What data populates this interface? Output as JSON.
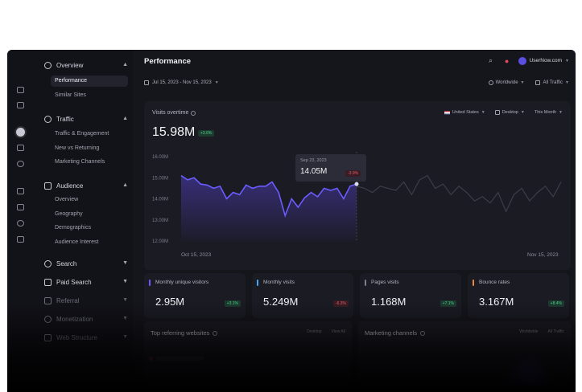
{
  "sidebar": {
    "sections": [
      {
        "label": "Overview",
        "icon": "clock-icon",
        "expanded": true,
        "items": [
          {
            "label": "Performance",
            "active": true
          },
          {
            "label": "Similar Sites",
            "active": false
          }
        ]
      },
      {
        "label": "Traffic",
        "icon": "globe-icon",
        "expanded": true,
        "items": [
          {
            "label": "Traffic & Engagement"
          },
          {
            "label": "New vs Returning"
          },
          {
            "label": "Marketing Channels"
          }
        ]
      },
      {
        "label": "Audience",
        "icon": "user-icon",
        "expanded": true,
        "items": [
          {
            "label": "Overview"
          },
          {
            "label": "Geography"
          },
          {
            "label": "Demographics"
          },
          {
            "label": "Audience Interest"
          }
        ]
      },
      {
        "label": "Search",
        "icon": "search-icon",
        "expanded": false
      },
      {
        "label": "Paid Search",
        "icon": "dollar-icon",
        "expanded": false
      },
      {
        "label": "Referral",
        "icon": "referral-icon",
        "expanded": false
      },
      {
        "label": "Monetization",
        "icon": "coin-icon",
        "expanded": false
      },
      {
        "label": "Web Structure",
        "icon": "sitemap-icon",
        "expanded": false
      }
    ]
  },
  "header": {
    "title": "Performance",
    "account": "UserNow.com"
  },
  "filters": {
    "date_range": "Jul 15, 2023 - Nov 15, 2023",
    "region": "Worldwide",
    "traffic": "All Traffic"
  },
  "visits_card": {
    "title": "Visits overtime",
    "value": "15.98M",
    "change": "+3.6%",
    "country": "United States",
    "device": "Desktop",
    "period": "This Month",
    "tooltip_date": "Sep 23, 2023",
    "tooltip_value": "14.05M",
    "tooltip_change": "-3.9%",
    "x_start": "Oct 15, 2023",
    "x_end": "Nov 15, 2023"
  },
  "chart_data": {
    "type": "line",
    "title": "Visits overtime",
    "ylim": [
      12.0,
      16.0
    ],
    "y_ticks": [
      "16.00M",
      "15.00M",
      "14.00M",
      "13.00M",
      "12.00M"
    ],
    "x_labels": [
      "Oct 15, 2023",
      "Nov 15, 2023"
    ],
    "series": [
      {
        "values": [
          15.1,
          14.9,
          15.0,
          14.7,
          14.65,
          14.5,
          14.6,
          14.0,
          14.3,
          14.2,
          14.65,
          14.5,
          14.6,
          14.6,
          14.8,
          14.3,
          13.2,
          14.0,
          13.6,
          14.05,
          14.3,
          14.1,
          14.5,
          14.4,
          14.5,
          14.0,
          14.6,
          14.7
        ]
      },
      {
        "values": [
          14.6,
          14.5,
          14.3,
          14.6,
          14.5,
          14.4,
          14.8,
          14.2,
          14.9,
          15.1,
          14.5,
          14.7,
          14.2,
          14.6,
          14.3,
          13.9,
          14.1,
          13.8,
          14.3,
          13.4,
          14.2,
          14.5,
          13.9,
          14.3,
          14.6,
          14.1,
          14.8
        ]
      }
    ]
  },
  "stats": [
    {
      "label": "Monthly unique visitors",
      "value": "2.95M",
      "change": "+3.1%",
      "color": "#6b59ff",
      "trend": "up"
    },
    {
      "label": "Monthly visits",
      "value": "5.249M",
      "change": "-6.3%",
      "color": "#3aaff0",
      "trend": "down"
    },
    {
      "label": "Pages visits",
      "value": "1.168M",
      "change": "+7.1%",
      "color": "#7e7e8c",
      "trend": "up"
    },
    {
      "label": "Bounce rates",
      "value": "3.167M",
      "change": "+8.4%",
      "color": "#f0873a",
      "trend": "up"
    }
  ],
  "bottom": {
    "referring_title": "Top referring websites",
    "referring_filter": "Desktop",
    "referring_link": "View All",
    "channels_title": "Marketing channels",
    "channels_filter": "Worldwide",
    "channels_filter2": "All Traffic"
  }
}
